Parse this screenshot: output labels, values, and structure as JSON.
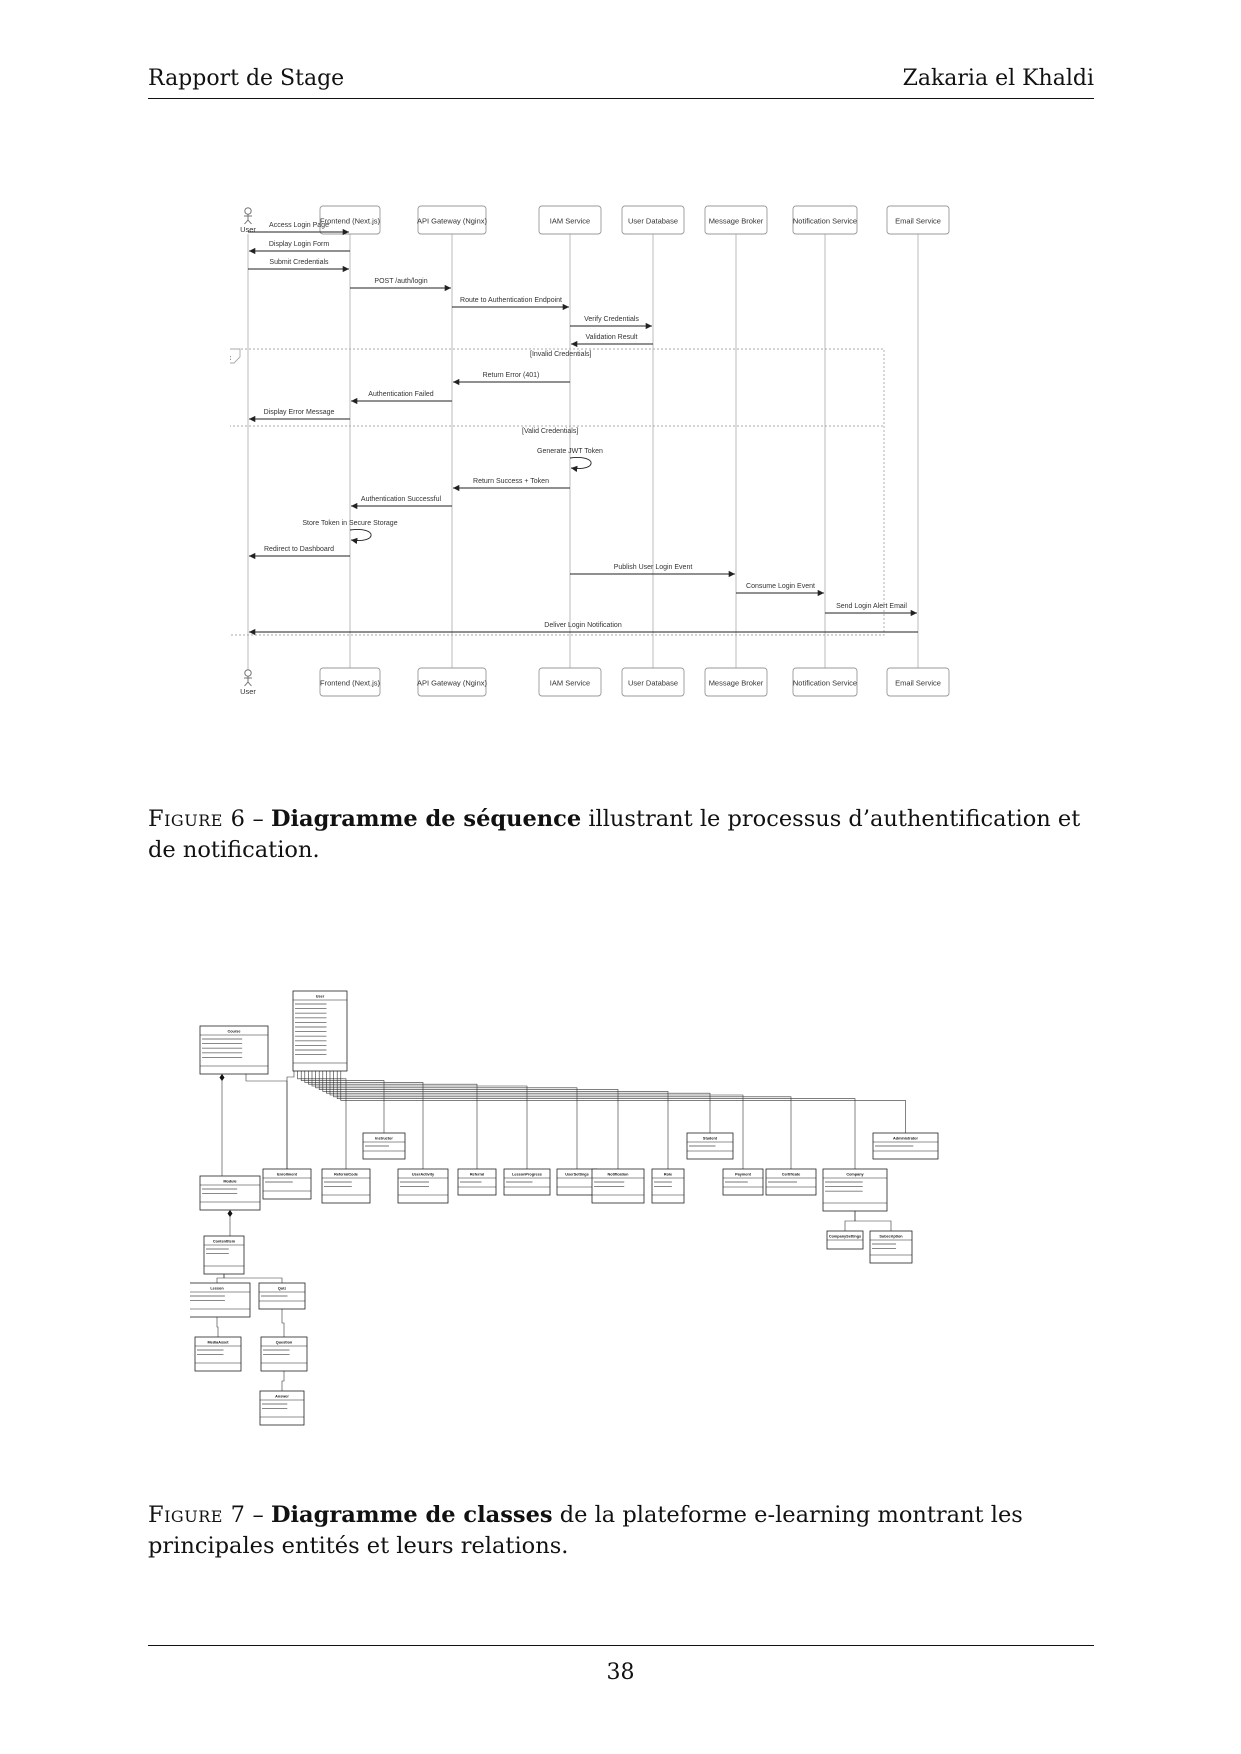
{
  "header": {
    "left": "Rapport de Stage",
    "right": "Zakaria el Khaldi"
  },
  "sequence_diagram": {
    "participants": [
      "User",
      "Frontend (Next.js)",
      "API Gateway (Nginx)",
      "IAM Service",
      "User Database",
      "Message Broker",
      "Notification Service",
      "Email Service"
    ],
    "messages": [
      {
        "from": 0,
        "to": 1,
        "label": "Access Login Page"
      },
      {
        "from": 1,
        "to": 0,
        "label": "Display Login Form"
      },
      {
        "from": 0,
        "to": 1,
        "label": "Submit Credentials"
      },
      {
        "from": 1,
        "to": 2,
        "label": "POST /auth/login"
      },
      {
        "from": 2,
        "to": 3,
        "label": "Route to Authentication Endpoint"
      },
      {
        "from": 3,
        "to": 4,
        "label": "Verify Credentials"
      },
      {
        "from": 4,
        "to": 3,
        "label": "Validation Result"
      },
      {
        "from": 3,
        "to": 2,
        "label": "Return Error (401)"
      },
      {
        "from": 2,
        "to": 1,
        "label": "Authentication Failed"
      },
      {
        "from": 1,
        "to": 0,
        "label": "Display Error Message"
      },
      {
        "from": 3,
        "to": 3,
        "label": "Generate JWT Token"
      },
      {
        "from": 3,
        "to": 2,
        "label": "Return Success + Token"
      },
      {
        "from": 2,
        "to": 1,
        "label": "Authentication Successful"
      },
      {
        "from": 1,
        "to": 1,
        "label": "Store Token in Secure Storage"
      },
      {
        "from": 1,
        "to": 0,
        "label": "Redirect to Dashboard"
      },
      {
        "from": 3,
        "to": 5,
        "label": "Publish User Login Event"
      },
      {
        "from": 5,
        "to": 6,
        "label": "Consume Login Event"
      },
      {
        "from": 6,
        "to": 7,
        "label": "Send Login Alert Email"
      },
      {
        "from": 7,
        "to": 0,
        "label": "Deliver Login Notification"
      }
    ],
    "alt_label": "alt",
    "guard_1": "[Invalid Credentials]",
    "guard_2": "[Valid Credentials]"
  },
  "class_diagram": {
    "classes": [
      "User",
      "Course",
      "Instructor",
      "Student",
      "Administrator",
      "Enrollment",
      "Referral",
      "ReferralCode",
      "UserActivity",
      "LessonProgress",
      "UserSettings",
      "Notification",
      "Role",
      "Payment",
      "Certificate",
      "Company",
      "CompanySettings",
      "Subscription",
      "Module",
      "ContentItem",
      "Lesson",
      "Quiz",
      "MediaAsset",
      "Question",
      "Answer"
    ]
  },
  "captions": {
    "fig6": {
      "label": "Figure 6",
      "sep": " – ",
      "bold": "Diagramme de séquence",
      "rest": " illustrant le processus d’authentification et de notification."
    },
    "fig7": {
      "label": "Figure 7",
      "sep": " – ",
      "bold": "Diagramme de classes",
      "rest": " de la plateforme e-learning montrant les principales entités et leurs relations."
    }
  },
  "page_number": "38"
}
